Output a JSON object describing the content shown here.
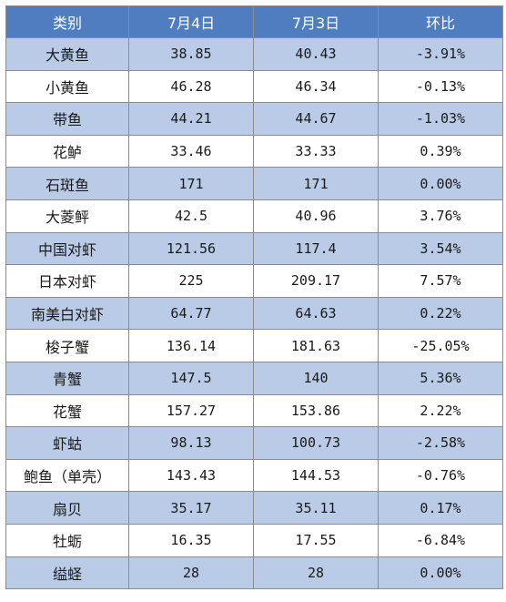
{
  "table": {
    "headers": [
      "类别",
      "7月4日",
      "7月3日",
      "环比"
    ],
    "rows": [
      [
        "大黄鱼",
        "38.85",
        "40.43",
        "-3.91%"
      ],
      [
        "小黄鱼",
        "46.28",
        "46.34",
        "-0.13%"
      ],
      [
        "带鱼",
        "44.21",
        "44.67",
        "-1.03%"
      ],
      [
        "花鲈",
        "33.46",
        "33.33",
        "0.39%"
      ],
      [
        "石斑鱼",
        "171",
        "171",
        "0.00%"
      ],
      [
        "大菱鲆",
        "42.5",
        "40.96",
        "3.76%"
      ],
      [
        "中国对虾",
        "121.56",
        "117.4",
        "3.54%"
      ],
      [
        "日本对虾",
        "225",
        "209.17",
        "7.57%"
      ],
      [
        "南美白对虾",
        "64.77",
        "64.63",
        "0.22%"
      ],
      [
        "梭子蟹",
        "136.14",
        "181.63",
        "-25.05%"
      ],
      [
        "青蟹",
        "147.5",
        "140",
        "5.36%"
      ],
      [
        "花蟹",
        "157.27",
        "153.86",
        "2.22%"
      ],
      [
        "虾蛄",
        "98.13",
        "100.73",
        "-2.58%"
      ],
      [
        "鲍鱼（单壳）",
        "143.43",
        "144.53",
        "-0.76%"
      ],
      [
        "扇贝",
        "35.17",
        "35.11",
        "0.17%"
      ],
      [
        "牡蛎",
        "16.35",
        "17.55",
        "-6.84%"
      ],
      [
        "缢蛏",
        "28",
        "28",
        "0.00%"
      ]
    ]
  },
  "colors": {
    "header_bg": "#4f7dc0",
    "header_text": "#ffffff",
    "row_stripe": "#b9cbe6",
    "row_plain": "#ffffff",
    "border": "#8c8c8c"
  }
}
